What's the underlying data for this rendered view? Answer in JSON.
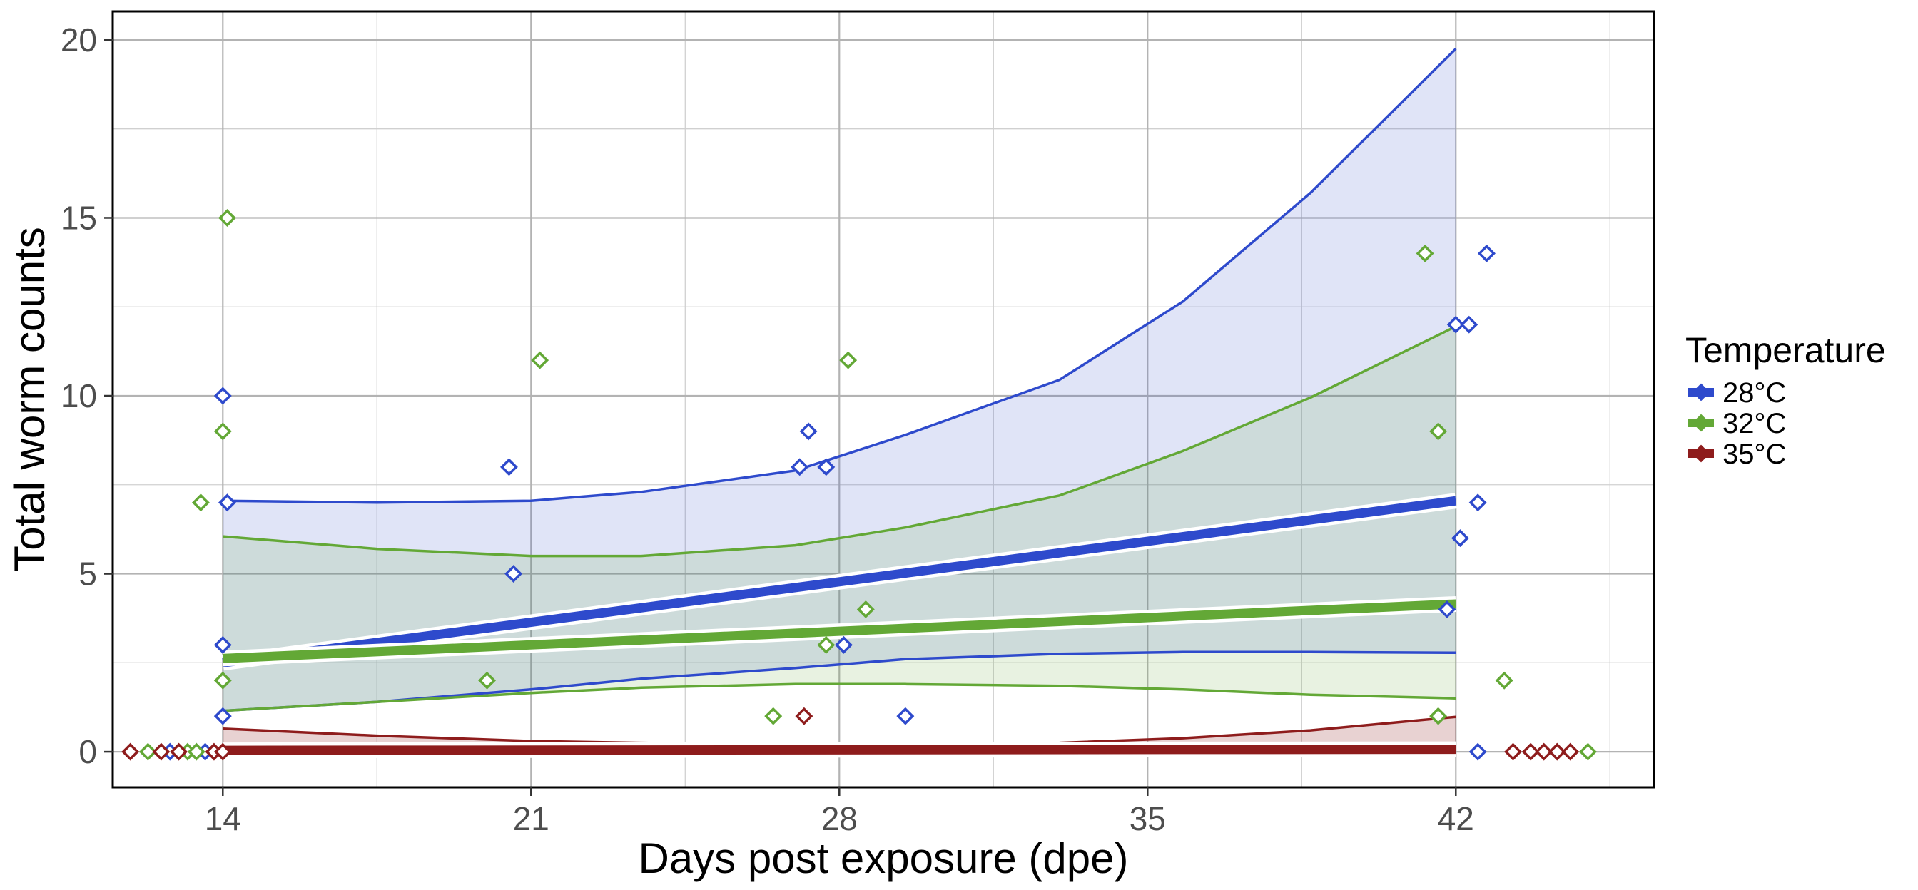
{
  "chart_data": {
    "type": "line",
    "xlabel": "Days post exposure (dpe)",
    "ylabel": "Total worm counts",
    "xlim": [
      11.5,
      46.5
    ],
    "ylim": [
      -1,
      20.8
    ],
    "x_ticks": [
      "14",
      "21",
      "28",
      "35",
      "42"
    ],
    "y_ticks": [
      "0",
      "5",
      "10",
      "15",
      "20"
    ],
    "grid": true,
    "legend": {
      "title": "Temperature",
      "placement": "right"
    },
    "series": [
      {
        "name": "28°C",
        "color": "#2e4acc",
        "fit": [
          [
            14,
            2.5
          ],
          [
            42,
            7.05
          ]
        ],
        "upper": [
          [
            14,
            7.05
          ],
          [
            17.5,
            7.0
          ],
          [
            21,
            7.05
          ],
          [
            23.5,
            7.3
          ],
          [
            27,
            7.9
          ],
          [
            29.5,
            8.9
          ],
          [
            33,
            10.45
          ],
          [
            35.8,
            12.65
          ],
          [
            38.7,
            15.7
          ],
          [
            42,
            19.75
          ]
        ],
        "lower": [
          [
            14,
            1.15
          ],
          [
            17.5,
            1.4
          ],
          [
            21,
            1.75
          ],
          [
            23.5,
            2.05
          ],
          [
            27,
            2.35
          ],
          [
            29.5,
            2.6
          ],
          [
            33,
            2.75
          ],
          [
            35.8,
            2.8
          ],
          [
            38.7,
            2.8
          ],
          [
            42,
            2.78
          ]
        ],
        "points": [
          [
            14.0,
            10
          ],
          [
            14.0,
            3
          ],
          [
            14.0,
            1
          ],
          [
            14.1,
            7
          ],
          [
            20.5,
            8
          ],
          [
            20.6,
            5
          ],
          [
            27.1,
            8
          ],
          [
            27.3,
            9
          ],
          [
            27.7,
            8
          ],
          [
            28.1,
            3
          ],
          [
            29.5,
            1
          ],
          [
            41.8,
            4
          ],
          [
            42.0,
            12
          ],
          [
            42.1,
            6
          ],
          [
            42.3,
            12
          ],
          [
            42.5,
            7
          ],
          [
            42.7,
            14
          ],
          [
            12.8,
            0
          ],
          [
            13.6,
            0
          ],
          [
            42.5,
            0
          ]
        ]
      },
      {
        "name": "32°C",
        "color": "#63a836",
        "fit": [
          [
            14,
            2.62
          ],
          [
            42,
            4.15
          ]
        ],
        "upper": [
          [
            14,
            6.05
          ],
          [
            17.5,
            5.7
          ],
          [
            21,
            5.5
          ],
          [
            23.5,
            5.5
          ],
          [
            27,
            5.8
          ],
          [
            29.5,
            6.3
          ],
          [
            33,
            7.2
          ],
          [
            35.8,
            8.45
          ],
          [
            38.7,
            9.95
          ],
          [
            42,
            11.95
          ]
        ],
        "lower": [
          [
            14,
            1.15
          ],
          [
            17.5,
            1.4
          ],
          [
            21,
            1.65
          ],
          [
            23.5,
            1.8
          ],
          [
            27,
            1.9
          ],
          [
            29.5,
            1.9
          ],
          [
            33,
            1.85
          ],
          [
            35.8,
            1.75
          ],
          [
            38.7,
            1.6
          ],
          [
            42,
            1.5
          ]
        ],
        "points": [
          [
            14.1,
            15
          ],
          [
            14.0,
            9
          ],
          [
            13.5,
            7
          ],
          [
            14.0,
            2
          ],
          [
            21.2,
            11
          ],
          [
            20.0,
            2
          ],
          [
            28.2,
            11
          ],
          [
            28.6,
            4
          ],
          [
            27.7,
            3
          ],
          [
            26.5,
            1
          ],
          [
            41.3,
            14
          ],
          [
            41.6,
            9
          ],
          [
            41.6,
            1
          ],
          [
            43.1,
            2
          ],
          [
            12.3,
            0
          ],
          [
            13.2,
            0
          ],
          [
            13.4,
            0
          ],
          [
            45.0,
            0
          ]
        ]
      },
      {
        "name": "35°C",
        "color": "#8e1c1c",
        "fit": [
          [
            14,
            0.04
          ],
          [
            42,
            0.07
          ]
        ],
        "upper": [
          [
            14,
            0.65
          ],
          [
            17.5,
            0.45
          ],
          [
            21,
            0.3
          ],
          [
            23.5,
            0.25
          ],
          [
            27,
            0.2
          ],
          [
            29.5,
            0.2
          ],
          [
            33,
            0.25
          ],
          [
            35.8,
            0.38
          ],
          [
            38.7,
            0.6
          ],
          [
            42,
            0.98
          ]
        ],
        "lower": [
          [
            14,
            0.0
          ],
          [
            42,
            0.0
          ]
        ],
        "points": [
          [
            27.2,
            1
          ],
          [
            11.9,
            0
          ],
          [
            12.6,
            0
          ],
          [
            13.0,
            0
          ],
          [
            13.8,
            0
          ],
          [
            14.0,
            0
          ],
          [
            43.3,
            0
          ],
          [
            43.7,
            0
          ],
          [
            44.0,
            0
          ],
          [
            44.3,
            0
          ],
          [
            44.6,
            0
          ]
        ]
      }
    ]
  }
}
